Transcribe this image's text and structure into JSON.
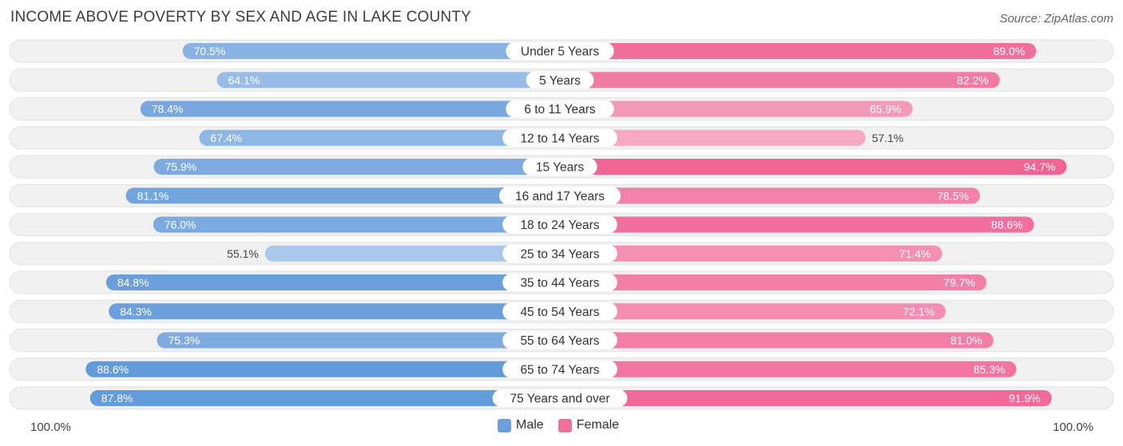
{
  "title": "INCOME ABOVE POVERTY BY SEX AND AGE IN LAKE COUNTY",
  "source": "Source: ZipAtlas.com",
  "axis_left_label": "100.0%",
  "axis_right_label": "100.0%",
  "legend": {
    "male_label": "Male",
    "female_label": "Female",
    "male_color": "#6a9fdc",
    "female_color": "#f0709a"
  },
  "chart_data": {
    "type": "bar",
    "orientation": "horizontal-diverging",
    "categories": [
      "Under 5 Years",
      "5 Years",
      "6 to 11 Years",
      "12 to 14 Years",
      "15 Years",
      "16 and 17 Years",
      "18 to 24 Years",
      "25 to 34 Years",
      "35 to 44 Years",
      "45 to 54 Years",
      "55 to 64 Years",
      "65 to 74 Years",
      "75 Years and over"
    ],
    "series": [
      {
        "name": "Male",
        "values": [
          70.5,
          64.1,
          78.4,
          67.4,
          75.9,
          81.1,
          76.0,
          55.1,
          84.8,
          84.3,
          75.3,
          88.6,
          87.8
        ],
        "labels": [
          "70.5%",
          "64.1%",
          "78.4%",
          "67.4%",
          "75.9%",
          "81.1%",
          "76.0%",
          "55.1%",
          "84.8%",
          "84.3%",
          "75.3%",
          "88.6%",
          "87.8%"
        ]
      },
      {
        "name": "Female",
        "values": [
          89.0,
          82.2,
          65.9,
          57.1,
          94.7,
          78.5,
          88.6,
          71.4,
          79.7,
          72.1,
          81.0,
          85.3,
          91.9
        ],
        "labels": [
          "89.0%",
          "82.2%",
          "65.9%",
          "57.1%",
          "94.7%",
          "78.5%",
          "88.6%",
          "71.4%",
          "79.7%",
          "72.1%",
          "81.0%",
          "85.3%",
          "91.9%"
        ]
      }
    ],
    "xlim": [
      0,
      100
    ],
    "legend_position": "bottom-center"
  }
}
